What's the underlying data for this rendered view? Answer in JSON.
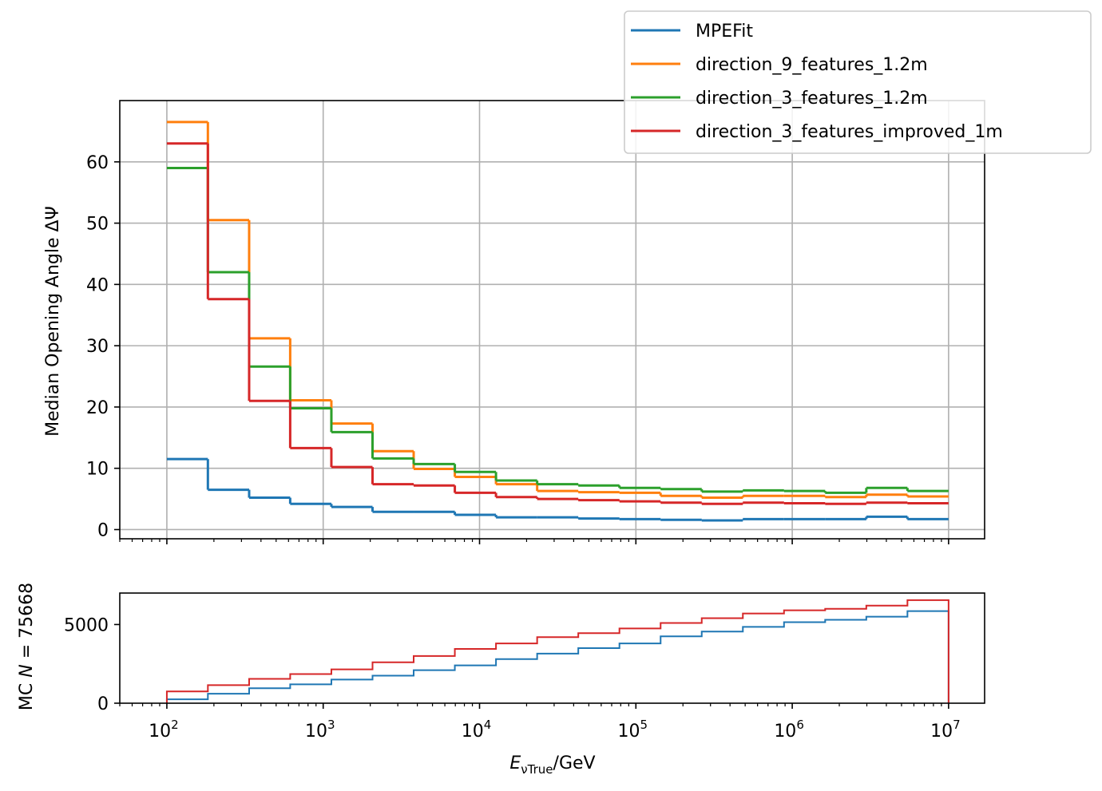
{
  "chart_data": [
    {
      "type": "line",
      "drawstyle": "steps",
      "x_scale": "log",
      "ylabel": "Median Opening Angle ΔΨ",
      "xlim": [
        50,
        17000000
      ],
      "ylim": [
        -1.5,
        70
      ],
      "y_ticks": [
        0,
        10,
        20,
        30,
        40,
        50,
        60
      ],
      "grid": true,
      "legend": {
        "placement": "top-right, outside"
      },
      "bin_edges": [
        100,
        183,
        336,
        615,
        1128,
        2068,
        3790,
        6950,
        12740,
        23360,
        42810,
        78480,
        143900,
        263700,
        483300,
        886000,
        1624000,
        2977000,
        5456000,
        10000000
      ],
      "series": [
        {
          "name": "MPEFit",
          "color": "#1f77b4",
          "values": [
            11.5,
            6.5,
            5.2,
            4.2,
            3.7,
            2.9,
            2.9,
            2.4,
            2.0,
            2.0,
            1.8,
            1.7,
            1.6,
            1.5,
            1.7,
            1.7,
            1.7,
            2.1,
            1.7
          ]
        },
        {
          "name": "direction_9_features_1.2m",
          "color": "#ff7f0e",
          "values": [
            66.5,
            50.5,
            31.2,
            21.1,
            17.3,
            12.8,
            9.9,
            8.6,
            7.4,
            6.3,
            6.1,
            6.0,
            5.5,
            5.2,
            5.5,
            5.5,
            5.3,
            5.7,
            5.4
          ]
        },
        {
          "name": "direction_3_features_1.2m",
          "color": "#2ca02c",
          "values": [
            59.0,
            42.0,
            26.6,
            19.8,
            15.9,
            11.6,
            10.7,
            9.4,
            8.0,
            7.4,
            7.2,
            6.8,
            6.6,
            6.2,
            6.4,
            6.3,
            6.0,
            6.8,
            6.3
          ]
        },
        {
          "name": "direction_3_features_improved_1m",
          "color": "#d62728",
          "values": [
            63.0,
            37.6,
            21.0,
            13.3,
            10.2,
            7.4,
            7.2,
            6.0,
            5.3,
            5.0,
            4.8,
            4.6,
            4.4,
            4.2,
            4.4,
            4.3,
            4.2,
            4.4,
            4.3
          ]
        }
      ]
    },
    {
      "type": "bar",
      "drawstyle": "histogram-step",
      "x_scale": "log",
      "xlabel_main": "E",
      "xlabel_sub": "νTrue",
      "xlabel_rest": "/GeV",
      "ylabel_prefix": "MC ",
      "ylabel_var": "N",
      "ylabel_rest": " = 75668",
      "xlim": [
        50,
        17000000
      ],
      "ylim": [
        0,
        7000
      ],
      "y_ticks": [
        0,
        5000
      ],
      "x_ticks": [
        100,
        1000,
        10000,
        100000,
        1000000,
        10000000
      ],
      "x_tick_labels": [
        "10",
        "10",
        "10",
        "10",
        "10",
        "10"
      ],
      "x_tick_exponents": [
        "2",
        "3",
        "4",
        "5",
        "6",
        "7"
      ],
      "grid": false,
      "bin_edges": [
        100,
        183,
        336,
        615,
        1128,
        2068,
        3790,
        6950,
        12740,
        23360,
        42810,
        78480,
        143900,
        263700,
        483300,
        886000,
        1624000,
        2977000,
        5456000,
        10000000
      ],
      "series": [
        {
          "color": "#1f77b4",
          "values": [
            250,
            600,
            950,
            1200,
            1500,
            1750,
            2100,
            2400,
            2800,
            3150,
            3500,
            3800,
            4250,
            4550,
            4850,
            5150,
            5300,
            5500,
            5850
          ]
        },
        {
          "color": "#d62728",
          "values": [
            750,
            1150,
            1550,
            1850,
            2150,
            2600,
            3000,
            3450,
            3800,
            4200,
            4450,
            4750,
            5100,
            5400,
            5700,
            5900,
            6000,
            6200,
            6550
          ]
        }
      ]
    }
  ]
}
